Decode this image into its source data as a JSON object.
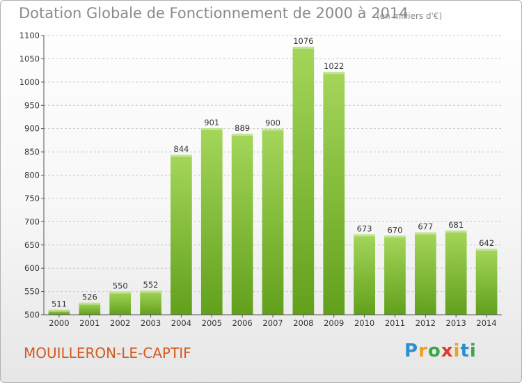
{
  "header": {
    "title": "Dotation Globale de Fonctionnement de 2000 à 2014",
    "unit": "(en milliers d'€)"
  },
  "footer": {
    "town": "MOUILLERON-LE-CAPTIF",
    "logo": "Proxiti"
  },
  "colors": {
    "bar_top": "#a4d65a",
    "bar_bottom": "#62a01c",
    "title": "#8a8a8a",
    "town": "#d4591f"
  },
  "chart_data": {
    "type": "bar",
    "categories": [
      "2000",
      "2001",
      "2002",
      "2003",
      "2004",
      "2005",
      "2006",
      "2007",
      "2008",
      "2009",
      "2010",
      "2011",
      "2012",
      "2013",
      "2014"
    ],
    "values": [
      511,
      526,
      550,
      552,
      844,
      901,
      889,
      900,
      1076,
      1022,
      673,
      670,
      677,
      681,
      642
    ],
    "title": "Dotation Globale de Fonctionnement de 2000 à 2014",
    "xlabel": "",
    "ylabel": "",
    "ylim": [
      500,
      1100
    ],
    "yticks": [
      500,
      550,
      600,
      650,
      700,
      750,
      800,
      850,
      900,
      950,
      1000,
      1050,
      1100
    ],
    "grid": true,
    "data_labels": true
  }
}
